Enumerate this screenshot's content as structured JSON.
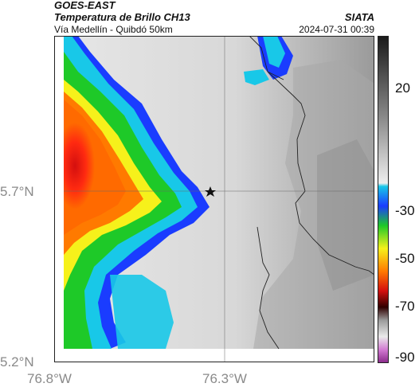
{
  "header": {
    "satellite": "GOES-EAST",
    "product": "Temperatura de Brillo CH13",
    "region": "Vía Medellín - Quibdó 50km",
    "source": "SIATA",
    "timestamp": "2024-07-31 00:39"
  },
  "map": {
    "lat_labels": [
      "5.7°N",
      "5.2°N"
    ],
    "lon_labels": [
      "76.8°W",
      "76.3°W"
    ],
    "marker": "star",
    "gridlines": true
  },
  "colorbar": {
    "ticks": [
      "20",
      "-30",
      "-50",
      "-70",
      "-90"
    ]
  },
  "colors": {
    "background": "#ffffff",
    "cold_red": "#e01010",
    "orange": "#ff7a00",
    "yellow": "#f6f11b",
    "green": "#1ec928",
    "cyan": "#18c8e8",
    "deep_blue": "#1a3cff",
    "gray_scale": "#bdbdbd"
  }
}
